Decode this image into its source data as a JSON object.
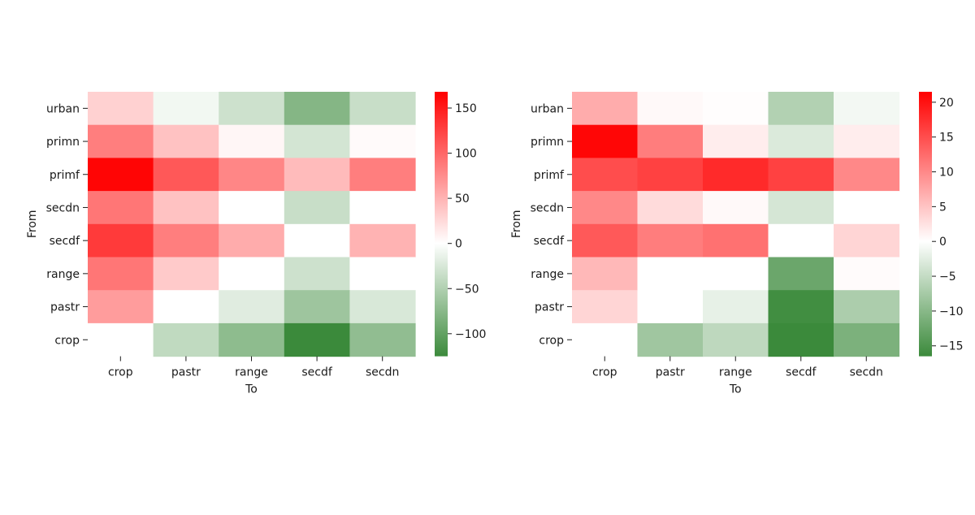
{
  "chart_data": [
    {
      "type": "heatmap",
      "xlabel": "To",
      "ylabel": "From",
      "x_categories": [
        "crop",
        "pastr",
        "range",
        "secdf",
        "secdn"
      ],
      "y_categories": [
        "urban",
        "primn",
        "primf",
        "secdn",
        "secdf",
        "range",
        "pastr",
        "crop"
      ],
      "values": [
        [
          30,
          -8,
          -32,
          -78,
          -35
        ],
        [
          85,
          40,
          6,
          -28,
          3
        ],
        [
          165,
          110,
          80,
          45,
          85
        ],
        [
          90,
          40,
          0,
          -35,
          0
        ],
        [
          130,
          85,
          55,
          0,
          50
        ],
        [
          90,
          35,
          0,
          -32,
          0
        ],
        [
          65,
          0,
          -20,
          -62,
          -25
        ],
        [
          0,
          -40,
          -72,
          -125,
          -70
        ]
      ],
      "colorbar": {
        "vmin": -125,
        "vmax": 168,
        "ticks": [
          150,
          100,
          50,
          0,
          -50,
          -100
        ],
        "tick_labels": [
          "150",
          "100",
          "50",
          "0",
          "−50",
          "−100"
        ]
      },
      "colors": {
        "negative": "#3b8a3b",
        "zero": "#ffffff",
        "positive": "#ff0000"
      }
    },
    {
      "type": "heatmap",
      "xlabel": "To",
      "ylabel": "From",
      "x_categories": [
        "crop",
        "pastr",
        "range",
        "secdf",
        "secdn"
      ],
      "y_categories": [
        "urban",
        "primn",
        "primf",
        "secdn",
        "secdf",
        "range",
        "pastr",
        "crop"
      ],
      "values": [
        [
          7,
          0.5,
          0.2,
          -6.5,
          -1
        ],
        [
          21,
          11,
          1.5,
          -3,
          1.5
        ],
        [
          15,
          16,
          18,
          16,
          10
        ],
        [
          10,
          3,
          0.5,
          -3.5,
          0
        ],
        [
          14,
          11,
          12,
          0,
          3.5
        ],
        [
          6,
          0,
          0,
          -12.5,
          0.3
        ],
        [
          3.5,
          0,
          -2,
          -16,
          -7
        ],
        [
          0,
          -8,
          -5.5,
          -16.5,
          -11
        ]
      ],
      "colorbar": {
        "vmin": -16.5,
        "vmax": 21.5,
        "ticks": [
          20,
          15,
          10,
          5,
          0,
          -5,
          -10,
          -15
        ],
        "tick_labels": [
          "20",
          "15",
          "10",
          "5",
          "0",
          "−5",
          "−10",
          "−15"
        ]
      },
      "colors": {
        "negative": "#3b8a3b",
        "zero": "#ffffff",
        "positive": "#ff0000"
      }
    }
  ]
}
